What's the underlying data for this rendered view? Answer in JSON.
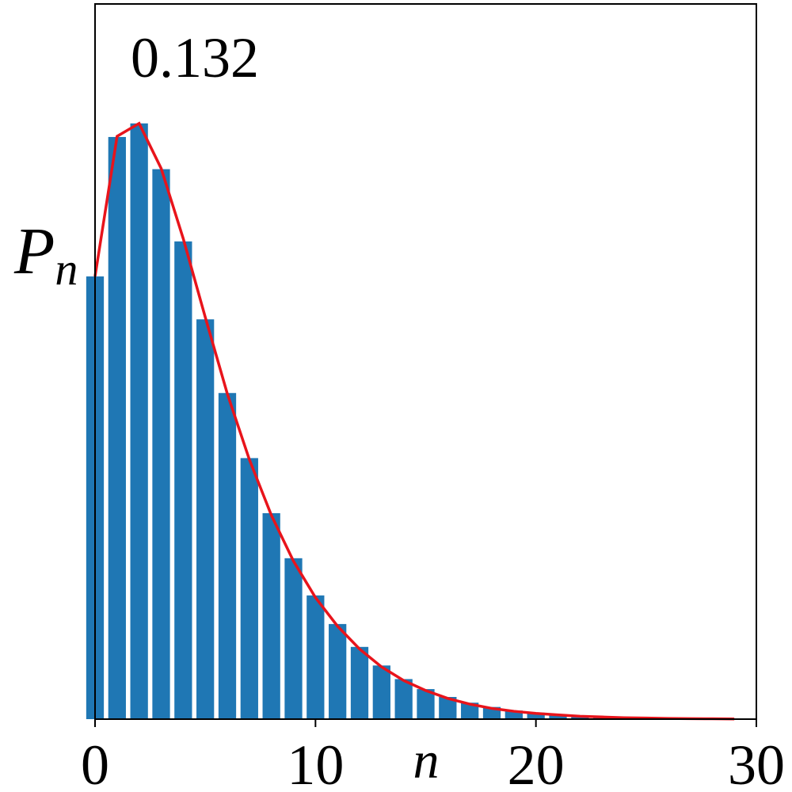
{
  "chart_data": {
    "type": "bar",
    "annotation": "0.132",
    "xlabel": "n",
    "ylabel": "P",
    "ylabel_sub": "n",
    "x": [
      0,
      1,
      2,
      3,
      4,
      5,
      6,
      7,
      8,
      9,
      10,
      11,
      12,
      13,
      14,
      15,
      16,
      17,
      18,
      19,
      20,
      21,
      22,
      23,
      24,
      25,
      26,
      27,
      28,
      29
    ],
    "values": [
      0.619,
      0.814,
      0.833,
      0.769,
      0.668,
      0.559,
      0.456,
      0.365,
      0.288,
      0.225,
      0.173,
      0.133,
      0.101,
      0.075,
      0.056,
      0.042,
      0.031,
      0.023,
      0.017,
      0.012,
      0.009,
      0.007,
      0.005,
      0.004,
      0.003,
      0.002,
      0.0015,
      0.001,
      0.0008,
      0.0005
    ],
    "color": "#1f77b4",
    "line": {
      "color": "#e8141b",
      "values": [
        0.619,
        0.815,
        0.833,
        0.77,
        0.672,
        0.562,
        0.455,
        0.363,
        0.285,
        0.221,
        0.17,
        0.13,
        0.098,
        0.073,
        0.054,
        0.04,
        0.029,
        0.021,
        0.015,
        0.011,
        0.008,
        0.006,
        0.004,
        0.003,
        0.002,
        0.0015,
        0.001,
        0.0007,
        0.0005,
        0.0003
      ]
    },
    "xlim": [
      0,
      30
    ],
    "xticks": [
      0,
      10,
      20,
      30
    ],
    "ylim": [
      0,
      1
    ]
  }
}
